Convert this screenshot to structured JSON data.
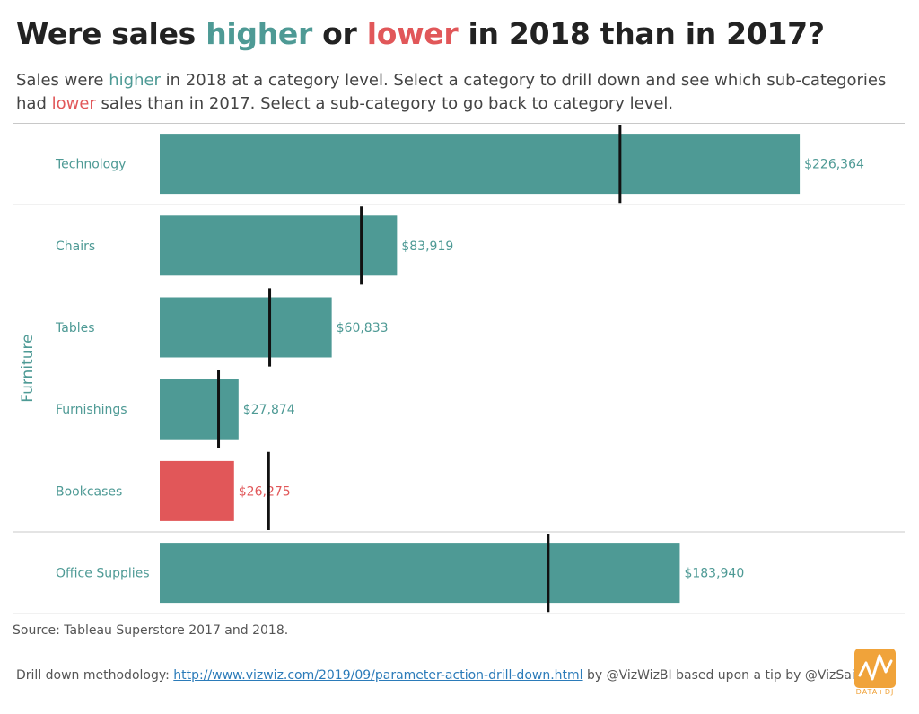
{
  "title": {
    "part1": "Were sales ",
    "higher": "higher",
    "part2": " or ",
    "lower": "lower",
    "part3": " in 2018 than in 2017?"
  },
  "subtitle": {
    "part1": "Sales were ",
    "higher": "higher",
    "part2": " in 2018 at a category level.  Select a category to drill down and see which sub-categories had ",
    "lower": "lower",
    "part3": " sales than in 2017.  Select a sub-category to go back to category level."
  },
  "colors": {
    "higher": "#4e9a95",
    "lower": "#e15759",
    "reference": "#111111",
    "divider": "#c8c8c8"
  },
  "chart_data": {
    "type": "bar",
    "orientation": "horizontal",
    "value_axis_range": [
      0,
      233000
    ],
    "rows": [
      {
        "group": "",
        "label": "Technology",
        "value": 226364,
        "value_label": "$226,364",
        "reference": 162800,
        "status": "higher"
      },
      {
        "group": "Furniture",
        "label": "Chairs",
        "value": 83919,
        "value_label": "$83,919",
        "reference": 71300,
        "status": "higher"
      },
      {
        "group": "Furniture",
        "label": "Tables",
        "value": 60833,
        "value_label": "$60,833",
        "reference": 38900,
        "status": "higher"
      },
      {
        "group": "Furniture",
        "label": "Furnishings",
        "value": 27874,
        "value_label": "$27,874",
        "reference": 20800,
        "status": "higher"
      },
      {
        "group": "Furniture",
        "label": "Bookcases",
        "value": 26275,
        "value_label": "$26,275",
        "reference": 38500,
        "status": "lower"
      },
      {
        "group": "",
        "label": "Office Supplies",
        "value": 183940,
        "value_label": "$183,940",
        "reference": 137400,
        "status": "higher"
      }
    ],
    "group_labels": [
      "Furniture"
    ],
    "grid": false,
    "legend": "none"
  },
  "source": "Source: Tableau Superstore 2017 and 2018.",
  "footer": {
    "prefix": "Drill down methodology: ",
    "link_text": "http://www.vizwiz.com/2019/09/parameter-action-drill-down.html",
    "suffix": " by @VizWizBI based upon a tip by @VizSaiyan."
  },
  "logo": {
    "text": "DATA+DJ",
    "icon": "zigzag-chart-icon",
    "color": "#f0a33a"
  }
}
